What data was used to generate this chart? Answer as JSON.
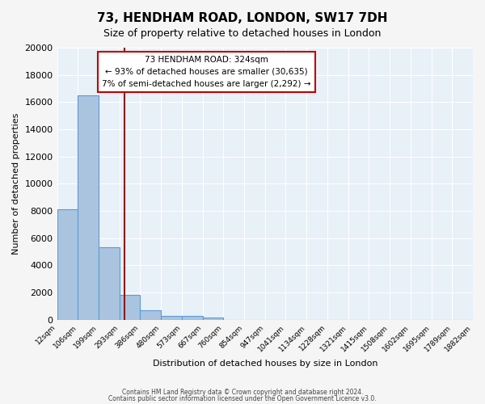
{
  "title": "73, HENDHAM ROAD, LONDON, SW17 7DH",
  "subtitle": "Size of property relative to detached houses in London",
  "xlabel": "Distribution of detached houses by size in London",
  "ylabel": "Number of detached properties",
  "bin_labels": [
    "12sqm",
    "106sqm",
    "199sqm",
    "293sqm",
    "386sqm",
    "480sqm",
    "573sqm",
    "667sqm",
    "760sqm",
    "854sqm",
    "947sqm",
    "1041sqm",
    "1134sqm",
    "1228sqm",
    "1321sqm",
    "1415sqm",
    "1508sqm",
    "1602sqm",
    "1695sqm",
    "1789sqm",
    "1882sqm"
  ],
  "bar_values": [
    8100,
    16500,
    5300,
    1850,
    700,
    300,
    250,
    150,
    0,
    0,
    0,
    0,
    0,
    0,
    0,
    0,
    0,
    0,
    0,
    0
  ],
  "bar_color": "#aac4e0",
  "bar_edge_color": "#5b9bd5",
  "ylim": [
    0,
    20000
  ],
  "yticks": [
    0,
    2000,
    4000,
    6000,
    8000,
    10000,
    12000,
    14000,
    16000,
    18000,
    20000
  ],
  "vline_x": 3.24,
  "vline_color": "#8b1a1a",
  "annotation_title": "73 HENDHAM ROAD: 324sqm",
  "annotation_line1": "← 93% of detached houses are smaller (30,635)",
  "annotation_line2": "7% of semi-detached houses are larger (2,292) →",
  "annotation_box_color": "#ffffff",
  "annotation_box_edge": "#c00000",
  "footer_line1": "Contains HM Land Registry data © Crown copyright and database right 2024.",
  "footer_line2": "Contains public sector information licensed under the Open Government Licence v3.0.",
  "background_color": "#e8f0f8",
  "plot_background": "#e8f0f8"
}
